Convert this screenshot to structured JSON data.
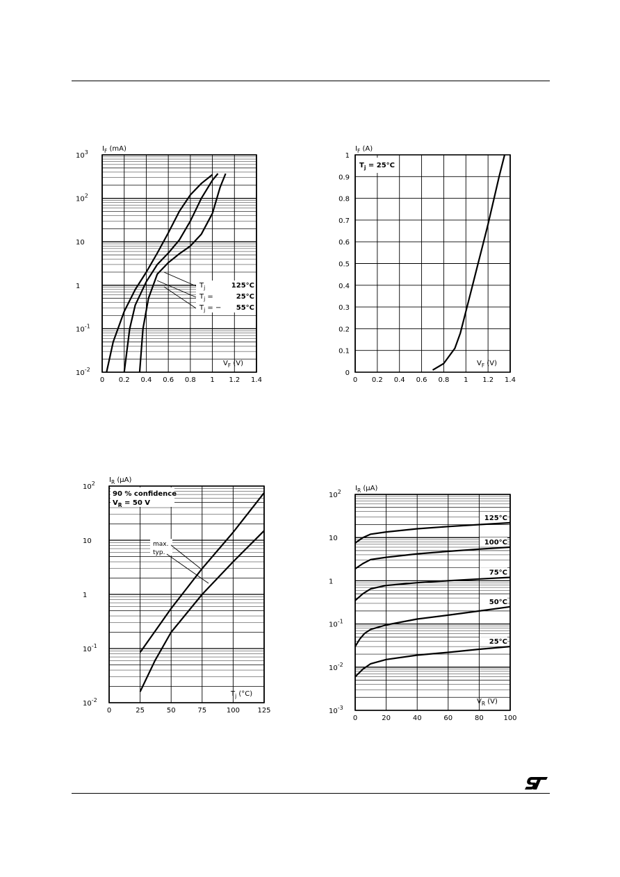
{
  "page": {
    "logo_text": "ST"
  },
  "chart_data": [
    {
      "id": "c1",
      "type": "line",
      "ylabel": "I_F (mA)",
      "xlabel": "V_F (V)",
      "yscale": "log",
      "xlim": [
        0,
        1.4
      ],
      "ylim": [
        0.01,
        1000
      ],
      "xticks": [
        "0",
        "0.2",
        "0.4",
        "0.6",
        "0.8",
        "1",
        "1.2",
        "1.4"
      ],
      "yticks": [
        {
          "value": 0.01,
          "base": "10",
          "exp": "-2"
        },
        {
          "value": 0.1,
          "base": "10",
          "exp": "-1"
        },
        {
          "value": 1,
          "base": "1",
          "exp": ""
        },
        {
          "value": 10,
          "base": "10",
          "exp": ""
        },
        {
          "value": 100,
          "base": "10",
          "exp": "2"
        },
        {
          "value": 1000,
          "base": "10",
          "exp": "3"
        }
      ],
      "legend": {
        "labels": [
          "T",
          "T",
          "T"
        ],
        "subs": [
          "j",
          "j",
          "j"
        ],
        "mid": [
          "",
          "=",
          "= −"
        ],
        "values": [
          "125°C",
          "25°C",
          "55°C"
        ],
        "placement": "lower-right"
      },
      "series": [
        {
          "name": "125°C",
          "points": [
            [
              0.04,
              0.01
            ],
            [
              0.1,
              0.05
            ],
            [
              0.2,
              0.25
            ],
            [
              0.3,
              0.8
            ],
            [
              0.4,
              2
            ],
            [
              0.5,
              5.5
            ],
            [
              0.6,
              16
            ],
            [
              0.7,
              50
            ],
            [
              0.8,
              120
            ],
            [
              0.9,
              220
            ],
            [
              1.0,
              350
            ]
          ]
        },
        {
          "name": "25°C",
          "points": [
            [
              0.2,
              0.01
            ],
            [
              0.25,
              0.1
            ],
            [
              0.3,
              0.35
            ],
            [
              0.4,
              1.2
            ],
            [
              0.5,
              3
            ],
            [
              0.6,
              5.5
            ],
            [
              0.7,
              11
            ],
            [
              0.8,
              30
            ],
            [
              0.9,
              100
            ],
            [
              1.0,
              260
            ],
            [
              1.05,
              370
            ]
          ]
        },
        {
          "name": "−55°C",
          "points": [
            [
              0.34,
              0.01
            ],
            [
              0.37,
              0.1
            ],
            [
              0.42,
              0.5
            ],
            [
              0.5,
              1.8
            ],
            [
              0.6,
              3.3
            ],
            [
              0.7,
              5.3
            ],
            [
              0.8,
              8
            ],
            [
              0.9,
              15
            ],
            [
              1.0,
              45
            ],
            [
              1.07,
              180
            ],
            [
              1.12,
              370
            ]
          ]
        }
      ]
    },
    {
      "id": "c2",
      "type": "line",
      "ylabel": "I_F (A)",
      "xlabel": "V_F (V)",
      "yscale": "linear",
      "xlim": [
        0,
        1.4
      ],
      "ylim": [
        0,
        1
      ],
      "xticks": [
        "0",
        "0.2",
        "0.4",
        "0.6",
        "0.8",
        "1",
        "1.2",
        "1.4"
      ],
      "yticks": [
        "0",
        "0.1",
        "0.2",
        "0.3",
        "0.4",
        "0.5",
        "0.6",
        "0.7",
        "0.8",
        "0.9",
        "1"
      ],
      "annotation": {
        "text": "T",
        "sub": "j",
        "rest": " = 25°C"
      },
      "series": [
        {
          "name": "",
          "points": [
            [
              0.7,
              0.01
            ],
            [
              0.8,
              0.04
            ],
            [
              0.9,
              0.11
            ],
            [
              0.95,
              0.18
            ],
            [
              1.0,
              0.28
            ],
            [
              1.05,
              0.38
            ],
            [
              1.1,
              0.48
            ],
            [
              1.15,
              0.58
            ],
            [
              1.2,
              0.68
            ],
            [
              1.25,
              0.79
            ],
            [
              1.3,
              0.9
            ],
            [
              1.35,
              1.0
            ]
          ]
        }
      ]
    },
    {
      "id": "c3",
      "type": "line",
      "ylabel": "I_R (µA)",
      "xlabel": "T_j (°C)",
      "yscale": "log",
      "xlim": [
        0,
        125
      ],
      "ylim": [
        0.01,
        100
      ],
      "xticks": [
        "0",
        "25",
        "50",
        "75",
        "100",
        "125"
      ],
      "yticks": [
        {
          "value": 0.01,
          "base": "10",
          "exp": "-2"
        },
        {
          "value": 0.1,
          "base": "10",
          "exp": "-1"
        },
        {
          "value": 1,
          "base": "1",
          "exp": ""
        },
        {
          "value": 10,
          "base": "10",
          "exp": ""
        },
        {
          "value": 100,
          "base": "10",
          "exp": "2"
        }
      ],
      "annotation_lines": [
        "90 % confidence",
        "V_R = 50 V"
      ],
      "series_labels": [
        "max.",
        "typ."
      ],
      "series": [
        {
          "name": "max.",
          "points": [
            [
              25,
              0.085
            ],
            [
              50,
              0.55
            ],
            [
              75,
              3.0
            ],
            [
              100,
              14
            ],
            [
              125,
              75
            ]
          ]
        },
        {
          "name": "typ.",
          "points": [
            [
              25,
              0.016
            ],
            [
              37,
              0.06
            ],
            [
              50,
              0.2
            ],
            [
              75,
              1.0
            ],
            [
              100,
              4.0
            ],
            [
              125,
              15
            ]
          ]
        }
      ]
    },
    {
      "id": "c4",
      "type": "line",
      "ylabel": "I_R (µA)",
      "xlabel": "V_R (V)",
      "yscale": "log",
      "xlim": [
        0,
        100
      ],
      "ylim": [
        0.001,
        100
      ],
      "xticks": [
        "0",
        "20",
        "40",
        "60",
        "80",
        "100"
      ],
      "yticks": [
        {
          "value": 0.001,
          "base": "10",
          "exp": "-3"
        },
        {
          "value": 0.01,
          "base": "10",
          "exp": "-2"
        },
        {
          "value": 0.1,
          "base": "10",
          "exp": "-1"
        },
        {
          "value": 1,
          "base": "1",
          "exp": ""
        },
        {
          "value": 10,
          "base": "10",
          "exp": ""
        },
        {
          "value": 100,
          "base": "10",
          "exp": "2"
        }
      ],
      "series": [
        {
          "name": "125°C",
          "points": [
            [
              0,
              7.5
            ],
            [
              5,
              10
            ],
            [
              10,
              12
            ],
            [
              20,
              13.5
            ],
            [
              40,
              16
            ],
            [
              60,
              18
            ],
            [
              80,
              20
            ],
            [
              100,
              22
            ]
          ]
        },
        {
          "name": "100°C",
          "points": [
            [
              0,
              1.9
            ],
            [
              5,
              2.5
            ],
            [
              10,
              3.1
            ],
            [
              20,
              3.5
            ],
            [
              40,
              4.2
            ],
            [
              60,
              4.8
            ],
            [
              80,
              5.4
            ],
            [
              100,
              6.0
            ]
          ]
        },
        {
          "name": "75°C",
          "points": [
            [
              0,
              0.35
            ],
            [
              5,
              0.5
            ],
            [
              10,
              0.65
            ],
            [
              20,
              0.78
            ],
            [
              40,
              0.9
            ],
            [
              60,
              1.0
            ],
            [
              80,
              1.1
            ],
            [
              100,
              1.2
            ]
          ]
        },
        {
          "name": "50°C",
          "points": [
            [
              0,
              0.03
            ],
            [
              3,
              0.045
            ],
            [
              6,
              0.06
            ],
            [
              10,
              0.075
            ],
            [
              20,
              0.095
            ],
            [
              40,
              0.13
            ],
            [
              60,
              0.16
            ],
            [
              80,
              0.2
            ],
            [
              100,
              0.25
            ]
          ]
        },
        {
          "name": "25°C",
          "points": [
            [
              0,
              0.006
            ],
            [
              5,
              0.009
            ],
            [
              10,
              0.012
            ],
            [
              20,
              0.015
            ],
            [
              40,
              0.019
            ],
            [
              60,
              0.022
            ],
            [
              80,
              0.026
            ],
            [
              100,
              0.03
            ]
          ]
        }
      ]
    }
  ]
}
